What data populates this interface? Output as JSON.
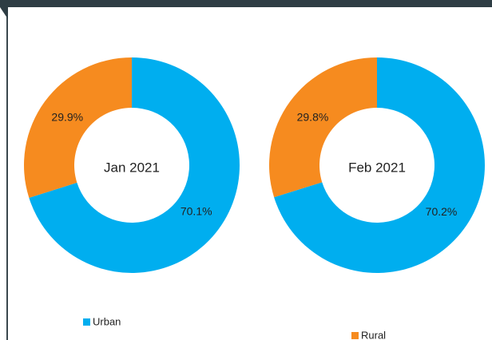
{
  "chart_data": [
    {
      "type": "pie",
      "donut": true,
      "title": "Jan 2021",
      "categories": [
        "Urban",
        "Rural"
      ],
      "values": [
        70.1,
        29.9
      ],
      "value_labels": [
        "70.1%",
        "29.9%"
      ],
      "colors": [
        "#00aeef",
        "#f68b1f"
      ]
    },
    {
      "type": "pie",
      "donut": true,
      "title": "Feb 2021",
      "categories": [
        "Urban",
        "Rural"
      ],
      "values": [
        70.2,
        29.8
      ],
      "value_labels": [
        "70.2%",
        "29.8%"
      ],
      "colors": [
        "#00aeef",
        "#f68b1f"
      ]
    }
  ]
}
